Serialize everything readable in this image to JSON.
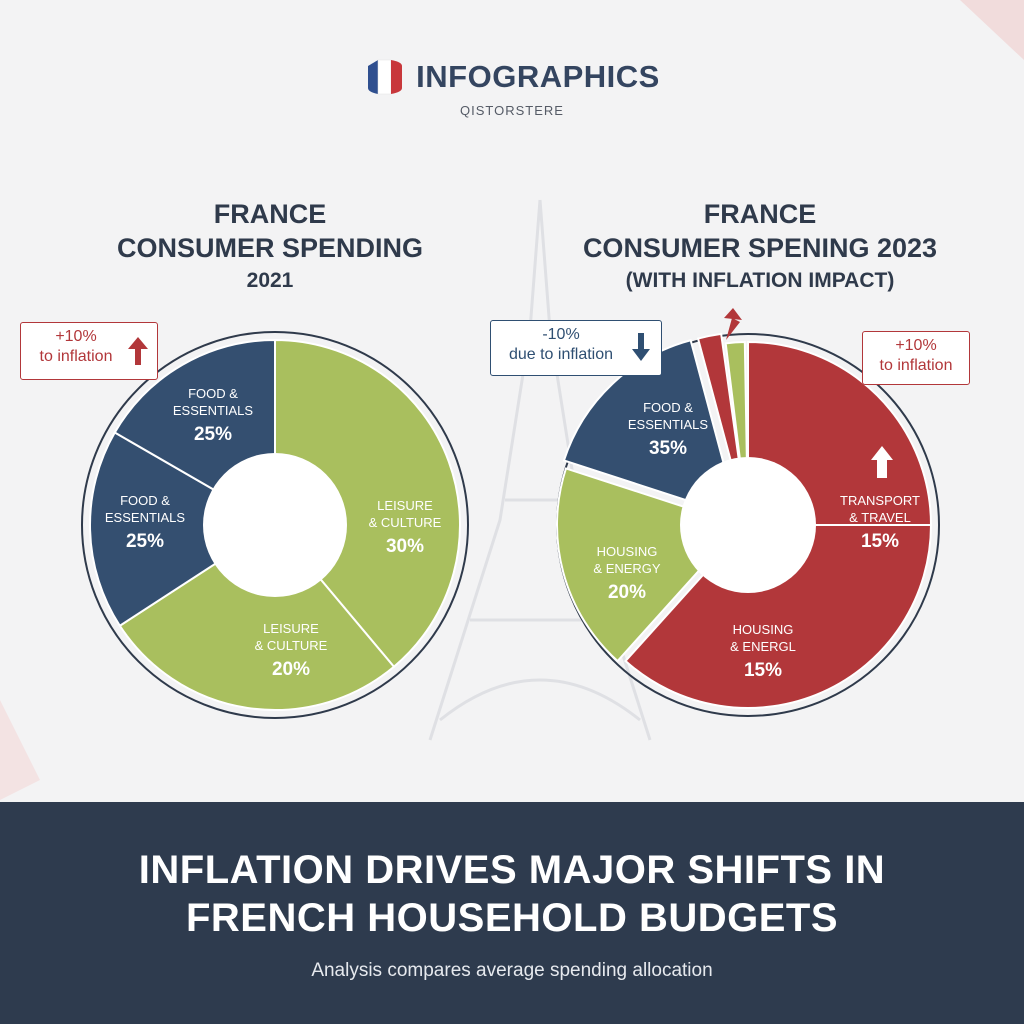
{
  "brand": {
    "title": "INFOGRAPHICS",
    "subtitle": "QISTORSTERE"
  },
  "left": {
    "title_line1": "FRANCE",
    "title_line2": "CONSUMER SPENDING",
    "title_line3": "2021",
    "callout": {
      "line1": "+10%",
      "line2": "to inflation"
    }
  },
  "right": {
    "title_line1": "FRANCE",
    "title_line2": "CONSUMER SPENING 2023",
    "title_line3": "(WITH INFLATION IMPACT)",
    "callout_left": {
      "line1": "-10%",
      "line2": "due to inflation"
    },
    "callout_right": {
      "line1": "+10%",
      "line2": "to inflation"
    }
  },
  "banner": {
    "headline_line1": "INFLATION DRIVES MAJOR SHIFTS IN",
    "headline_line2": "FRENCH HOUSEHOLD BUDGETS",
    "subline": "Analysis compares average spending allocation"
  },
  "colors": {
    "navy": "#344f70",
    "green": "#a9bf5e",
    "red": "#b2373a"
  },
  "chart_data": [
    {
      "type": "pie",
      "title": "FRANCE CONSUMER SPENDING 2021",
      "slices": [
        {
          "label_line1": "LEISURE",
          "label_line2": "& CULTURE",
          "value_label": "30%",
          "value": 30,
          "color": "#a9bf5e"
        },
        {
          "label_line1": "LEISURE",
          "label_line2": "& CULTURE",
          "value_label": "20%",
          "value": 20,
          "color": "#a9bf5e"
        },
        {
          "label_line1": "FOOD &",
          "label_line2": "ESSENTIALS",
          "value_label": "25%",
          "value": 25,
          "color": "#344f70"
        },
        {
          "label_line1": "FOOD &",
          "label_line2": "ESSENTIALS",
          "value_label": "25%",
          "value": 25,
          "color": "#344f70"
        }
      ]
    },
    {
      "type": "pie",
      "title": "FRANCE CONSUMER SPENING 2023 (WITH INFLATION IMPACT)",
      "slices": [
        {
          "label_line1": "TRANSPORT",
          "label_line2": "& TRAVEL",
          "value_label": "15%",
          "value": 15,
          "color": "#b2373a"
        },
        {
          "label_line1": "HOUSING",
          "label_line2": "& ENERGL",
          "value_label": "15%",
          "value": 15,
          "color": "#b2373a"
        },
        {
          "label_line1": "HOUSING",
          "label_line2": "& ENERGY",
          "value_label": "20%",
          "value": 20,
          "color": "#a9bf5e"
        },
        {
          "label_line1": "FOOD &",
          "label_line2": "ESSENTIALS",
          "value_label": "35%",
          "value": 35,
          "color": "#344f70"
        }
      ]
    }
  ]
}
